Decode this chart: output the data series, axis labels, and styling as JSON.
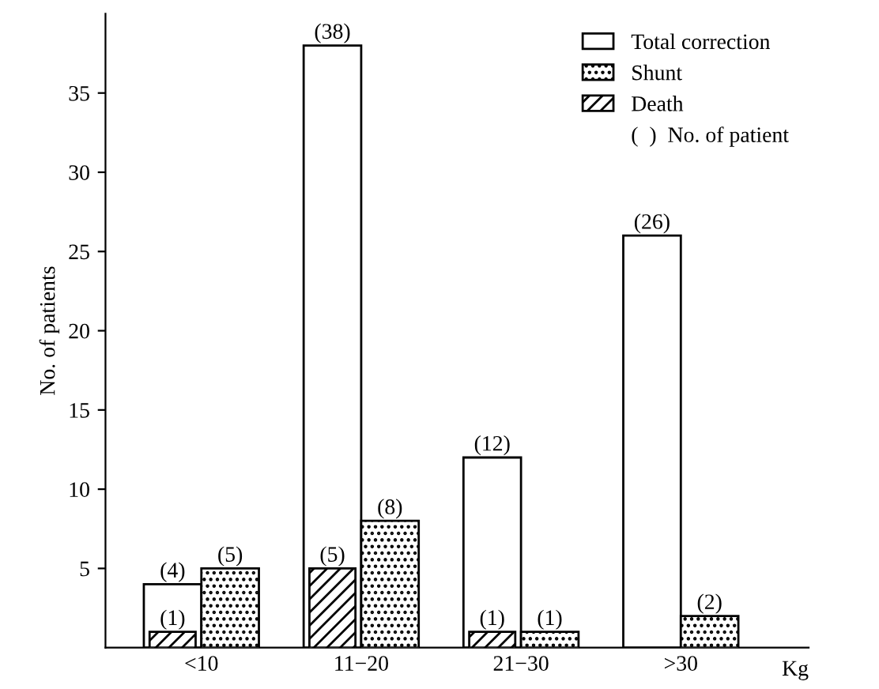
{
  "chart_data": {
    "type": "bar",
    "categories": [
      "<10",
      "11−20",
      "21−30",
      ">30"
    ],
    "series": [
      {
        "name": "Total correction",
        "color": "#ffffff",
        "values": [
          4,
          38,
          12,
          26
        ],
        "value_labels": [
          "(4)",
          "(38)",
          "(12)",
          "(26)"
        ]
      },
      {
        "name": "Death",
        "color": "#000000",
        "values": [
          1,
          5,
          1,
          null
        ],
        "value_labels": [
          "(1)",
          "(5)",
          "(1)",
          null
        ]
      },
      {
        "name": "Shunt",
        "color": "#000000",
        "values": [
          5,
          8,
          1,
          2
        ],
        "value_labels": [
          "(5)",
          "(8)",
          "(1)",
          "(2)"
        ]
      }
    ],
    "ylabel": "No. of patients",
    "xlabel": "Kg",
    "ylim": [
      0,
      40
    ],
    "yticks": [
      5,
      10,
      15,
      20,
      25,
      30,
      35
    ],
    "annotations": [
      "(  )  No. of patient"
    ],
    "legend": "top right",
    "grid": false
  }
}
